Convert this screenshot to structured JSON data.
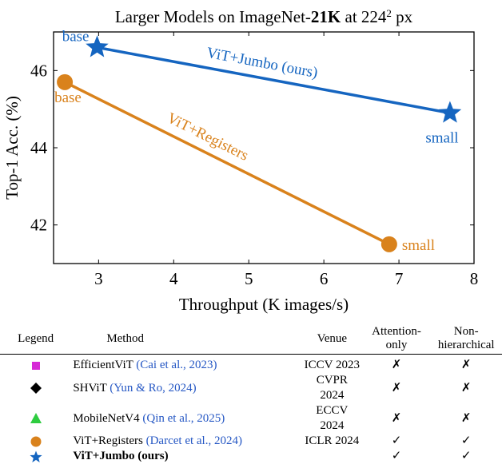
{
  "chart_data": {
    "type": "line",
    "title_prefix": "Larger Models on ImageNet-",
    "title_bold": "21K",
    "title_mid": " at 224",
    "title_sup": "2",
    "title_suffix": " px",
    "xlabel": "Throughput (K images/s)",
    "ylabel": "Top-1 Acc. (%)",
    "xlim": [
      2.4,
      8.0
    ],
    "ylim": [
      41.0,
      47.0
    ],
    "xticks": [
      "3",
      "4",
      "5",
      "6",
      "7",
      "8"
    ],
    "yticks": [
      "42",
      "44",
      "46"
    ],
    "series": [
      {
        "name": "ViT+Jumbo (ours)",
        "marker": "star",
        "color": "#1565c0",
        "points": [
          {
            "x": 2.98,
            "y": 46.6,
            "label": "base"
          },
          {
            "x": 7.68,
            "y": 44.9,
            "label": "small"
          }
        ]
      },
      {
        "name": "ViT+Registers",
        "marker": "circle",
        "color": "#d9821c",
        "points": [
          {
            "x": 2.55,
            "y": 45.7,
            "label": "base"
          },
          {
            "x": 6.87,
            "y": 41.5,
            "label": "small"
          }
        ]
      }
    ]
  },
  "table": {
    "headers": {
      "legend": "Legend",
      "method": "Method",
      "venue": "Venue",
      "attention_l1": "Attention-",
      "attention_l2": "only",
      "nonhier_l1": "Non-",
      "nonhier_l2": "hierarchical"
    },
    "rows": [
      {
        "marker": "square",
        "color": "#d62ad6",
        "method": "EfficientViT ",
        "citation": "(Cai et al., 2023)",
        "venue": "ICCV 2023",
        "attention_only": "✗",
        "non_hierarchical": "✗",
        "bold": false
      },
      {
        "marker": "diamond",
        "color": "#000000",
        "method": "SHViT ",
        "citation": "(Yun & Ro, 2024)",
        "venue": "CVPR 2024",
        "attention_only": "✗",
        "non_hierarchical": "✗",
        "bold": false
      },
      {
        "marker": "triangle",
        "color": "#2ecc40",
        "method": "MobileNetV4 ",
        "citation": "(Qin et al., 2025)",
        "venue": "ECCV 2024",
        "attention_only": "✗",
        "non_hierarchical": "✗",
        "bold": false
      },
      {
        "marker": "circle",
        "color": "#d9821c",
        "method": "ViT+Registers ",
        "citation": "(Darcet et al., 2024)",
        "venue": "ICLR 2024",
        "attention_only": "✓",
        "non_hierarchical": "✓",
        "bold": false
      },
      {
        "marker": "star",
        "color": "#1565c0",
        "method": "ViT+Jumbo (ours)",
        "citation": "",
        "venue": "",
        "attention_only": "✓",
        "non_hierarchical": "✓",
        "bold": true
      }
    ]
  }
}
